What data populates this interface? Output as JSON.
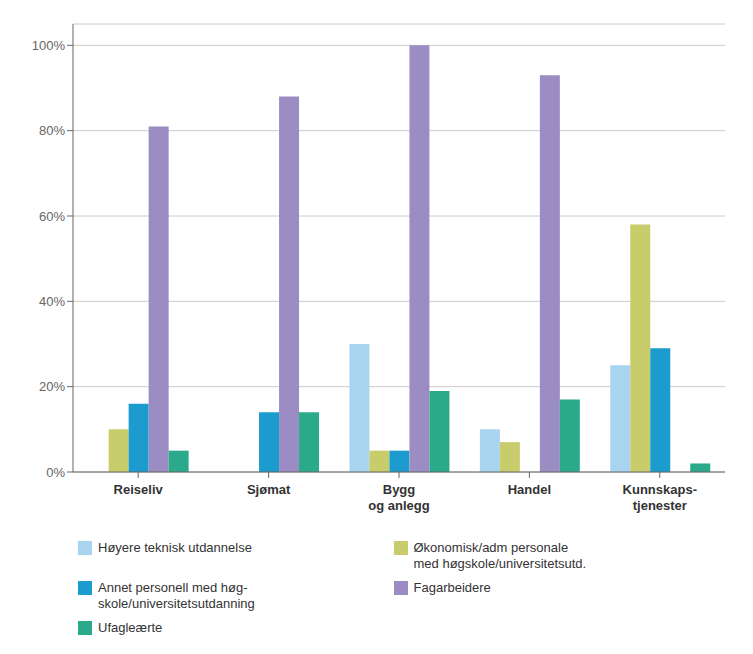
{
  "chart_data": {
    "type": "bar",
    "categories": [
      "Reiseliv",
      "Sjømat",
      "Bygg\nog anlegg",
      "Handel",
      "Kunnskaps-\ntjenester"
    ],
    "series": [
      {
        "name": "Høyere teknisk utdannelse",
        "color": "#a8d4f0",
        "values": [
          0,
          0,
          30,
          10,
          25
        ]
      },
      {
        "name": "Økonomisk/adm personale\nmed høgskole/universitetsutd.",
        "color": "#c8cc6a",
        "values": [
          10,
          0,
          5,
          7,
          58
        ]
      },
      {
        "name": "Annet personell med høg-\nskole/universitetsutdanning",
        "color": "#1b9bce",
        "values": [
          16,
          14,
          5,
          0,
          29
        ]
      },
      {
        "name": "Fagarbeidere",
        "color": "#9b8dc4",
        "values": [
          81,
          88,
          100,
          93,
          0
        ]
      },
      {
        "name": "Ufagleærte",
        "color": "#2aaa8a",
        "values": [
          5,
          14,
          19,
          17,
          2
        ]
      }
    ],
    "ylim": [
      0,
      105
    ],
    "yticks": [
      {
        "value": 0,
        "label": "0%"
      },
      {
        "value": 20,
        "label": "20%"
      },
      {
        "value": 40,
        "label": "40%"
      },
      {
        "value": 60,
        "label": "60%"
      },
      {
        "value": 80,
        "label": "80%"
      },
      {
        "value": 100,
        "label": "100%"
      }
    ],
    "grid": true,
    "legend": "bottom"
  }
}
